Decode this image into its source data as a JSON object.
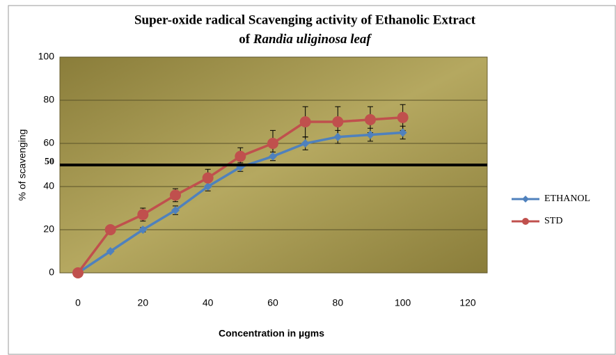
{
  "chart_data": {
    "type": "line",
    "title": [
      "Super-oxide radical  Scavenging activity of Ethanolic Extract",
      "of ",
      "Randia uliginosa leaf"
    ],
    "xlabel": "Concentration in µgms",
    "ylabel": "% of scavenging",
    "x": [
      0,
      10,
      20,
      30,
      40,
      50,
      60,
      70,
      80,
      90,
      100
    ],
    "series": [
      {
        "name": "ETHANOL",
        "color": "#4f81bd",
        "marker": "diamond",
        "values": [
          0,
          10,
          20,
          29,
          40,
          49,
          54,
          60,
          63,
          64,
          65
        ],
        "errors": [
          0,
          0,
          1,
          2,
          2,
          2,
          2,
          3,
          3,
          3,
          3
        ]
      },
      {
        "name": "STD",
        "color": "#c0504d",
        "marker": "circle",
        "values": [
          0,
          20,
          27,
          36,
          44,
          54,
          60,
          70,
          70,
          71,
          72
        ],
        "errors": [
          0,
          0,
          3,
          3,
          4,
          4,
          6,
          7,
          7,
          6,
          6
        ]
      }
    ],
    "xlim": [
      0,
      120
    ],
    "xticks": [
      0,
      20,
      40,
      60,
      80,
      100,
      120
    ],
    "ylim": [
      0,
      100
    ],
    "yticks": [
      0,
      20,
      40,
      60,
      80,
      100
    ],
    "grid": true,
    "legend": "right",
    "reference_line": {
      "value": 50,
      "label": "50"
    }
  }
}
